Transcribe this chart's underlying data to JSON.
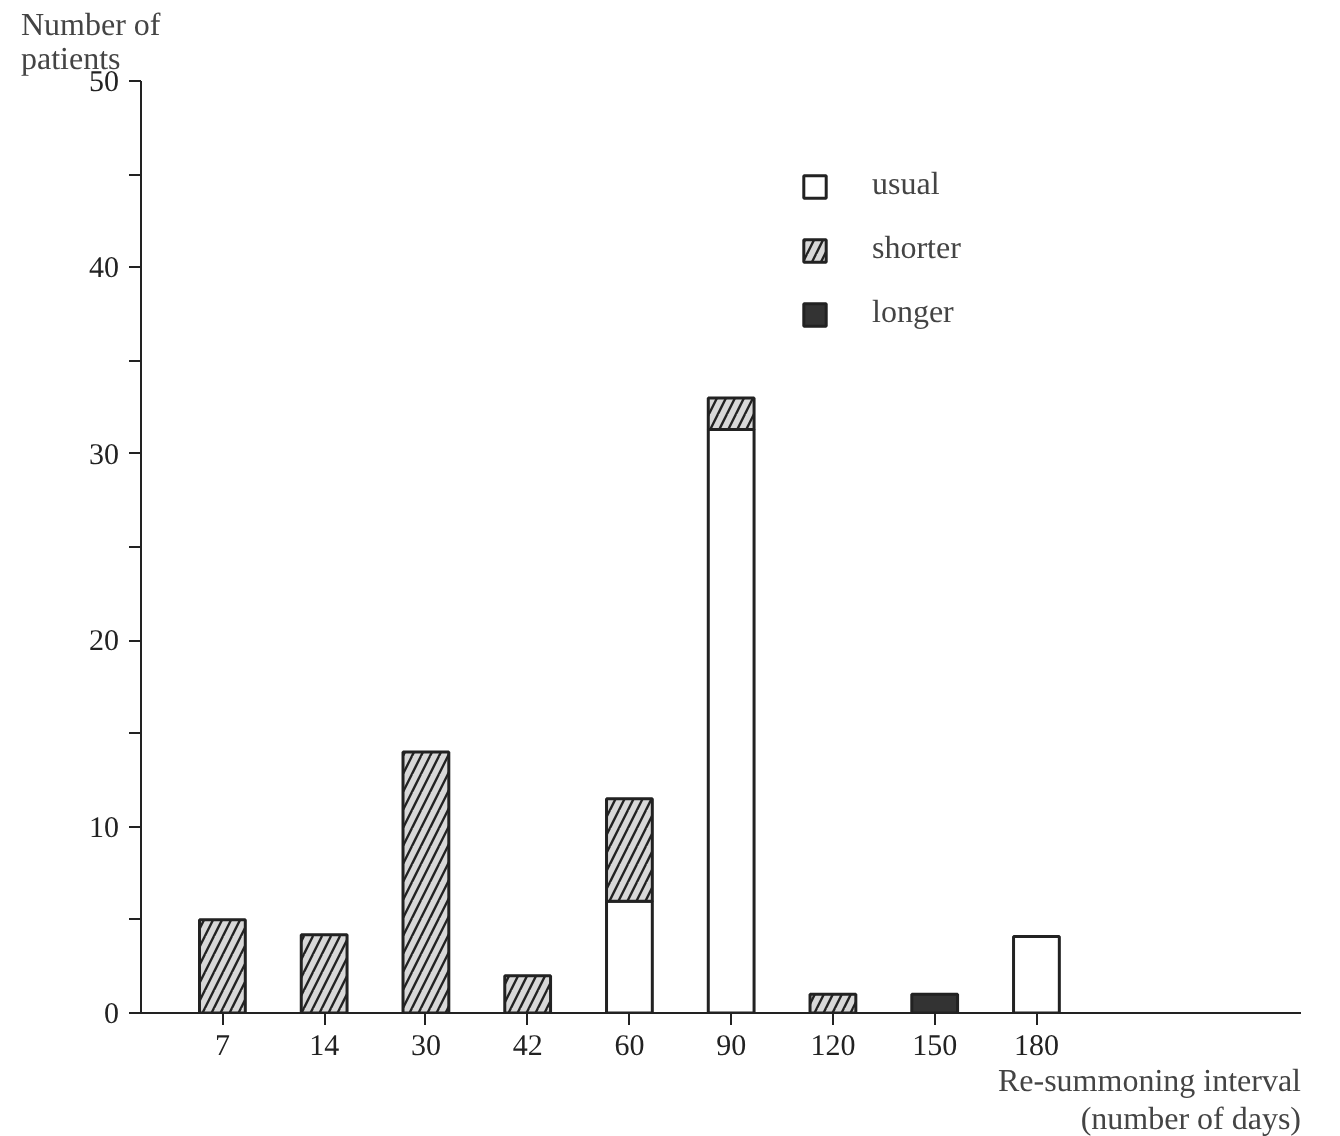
{
  "chart_data": {
    "type": "bar",
    "stacked": true,
    "xlabel": "Re-summoning interval (number of days)",
    "ylabel": "Number of patients",
    "categories": [
      "7",
      "14",
      "30",
      "42",
      "60",
      "90",
      "120",
      "150",
      "180"
    ],
    "series": [
      {
        "name": "usual",
        "color": "#ffffff",
        "values": [
          0,
          0,
          0,
          0,
          6,
          31.3,
          0,
          0,
          4.1
        ]
      },
      {
        "name": "shorter",
        "color": "#d8d8d8",
        "values": [
          5,
          4.2,
          14,
          2,
          5.5,
          1.7,
          1,
          0,
          0
        ]
      },
      {
        "name": "longer",
        "color": "#333333",
        "values": [
          0,
          0,
          0,
          0,
          0,
          0,
          0,
          1,
          0
        ]
      }
    ],
    "ylim": [
      0,
      50
    ],
    "yticks": [
      0,
      10,
      20,
      30,
      40,
      50
    ],
    "grid": false,
    "legend": "top right"
  }
}
